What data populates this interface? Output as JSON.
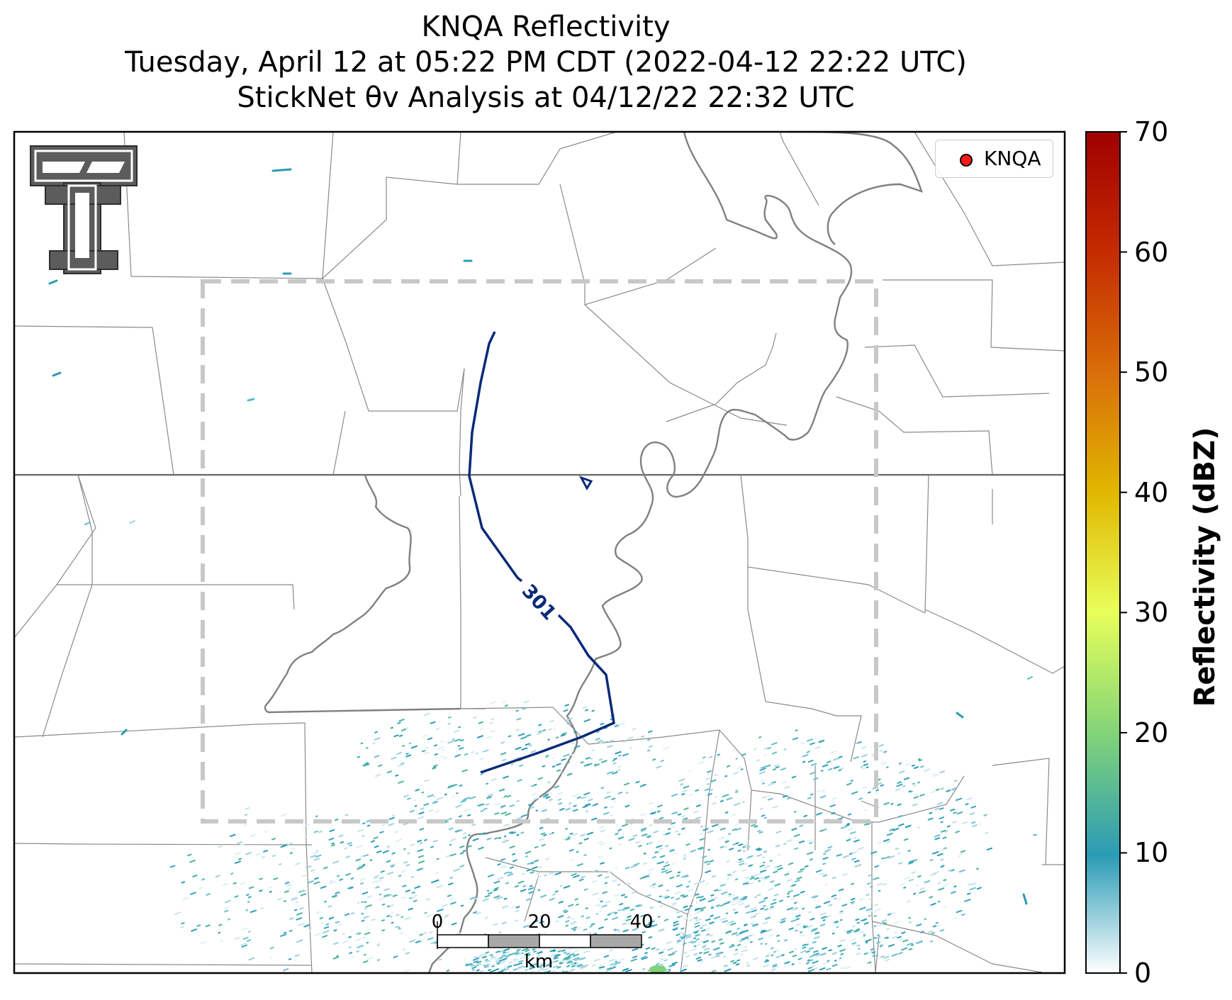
{
  "title": {
    "line1": "KNQA Reflectivity",
    "line2": "Tuesday, April 12 at 05:22 PM CDT (2022-04-12 22:22 UTC)",
    "line3": "StickNet θv Analysis at 04/12/22 22:32 UTC"
  },
  "legend": {
    "label": "KNQA",
    "marker_color": "#ff1a1a"
  },
  "colorbar": {
    "label": "Reflectivity (dBZ)",
    "ticks": [
      "0",
      "10",
      "20",
      "30",
      "40",
      "50",
      "60",
      "70"
    ],
    "range": [
      0,
      70
    ],
    "colors": [
      "#ffffff",
      "#2a9bb5",
      "#7fd27a",
      "#e8ff5a",
      "#e0b800",
      "#d9700a",
      "#c42a00",
      "#a00000"
    ]
  },
  "contour": {
    "label": "301",
    "color": "#0a2a78"
  },
  "analysis_box": {
    "style": "dashed",
    "color": "#c8c8c8"
  },
  "scale_bar": {
    "ticks": [
      "0",
      "20",
      "40"
    ],
    "unit": "km"
  },
  "logo": {
    "name": "texas-tech-double-t-logo"
  }
}
